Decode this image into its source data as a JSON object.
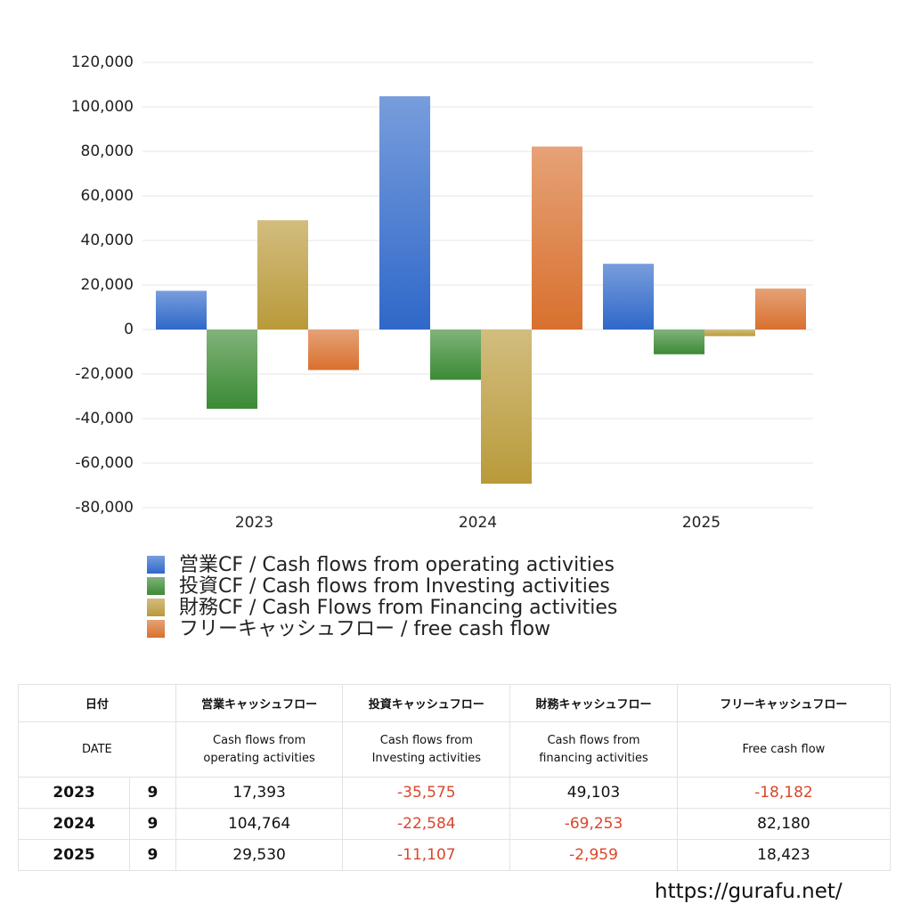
{
  "chart_data": {
    "type": "bar",
    "categories": [
      "2023",
      "2024",
      "2025"
    ],
    "series": [
      {
        "name": "営業CF / Cash flows from operating activities",
        "color": "#2f68c9",
        "values": [
          17393,
          104764,
          29530
        ]
      },
      {
        "name": "投資CF / Cash flows from Investing activities",
        "color": "#3b8a34",
        "values": [
          -35575,
          -22584,
          -11107
        ]
      },
      {
        "name": "財務CF / Cash Flows from Financing activities",
        "color": "#b99a3a",
        "values": [
          49103,
          -69253,
          -2959
        ]
      },
      {
        "name": "フリーキャッシュフロー / free cash flow",
        "color": "#d8702e",
        "values": [
          -18182,
          82180,
          18423
        ]
      }
    ],
    "ylim": [
      -80000,
      120000
    ],
    "yticks": [
      {
        "value": -80000,
        "label": "-80,000"
      },
      {
        "value": -60000,
        "label": "-60,000"
      },
      {
        "value": -40000,
        "label": "-40,000"
      },
      {
        "value": -20000,
        "label": "-20,000"
      },
      0,
      {
        "value": 20000,
        "label": "20,000"
      },
      {
        "value": 40000,
        "label": "40,000"
      },
      {
        "value": 60000,
        "label": "60,000"
      },
      {
        "value": 80000,
        "label": "80,000"
      },
      {
        "value": 100000,
        "label": "100,000"
      },
      {
        "value": 120000,
        "label": "120,000"
      }
    ],
    "grid": true
  },
  "table": {
    "header": [
      "日付",
      "営業キャッシュフロー",
      "投資キャッシュフロー",
      "財務キャッシュフロー",
      "フリーキャッシュフロー"
    ],
    "subheader": [
      "DATE",
      "Cash flows from\noperating activities",
      "Cash flows from\nInvesting activities",
      "Cash flows from\nfinancing activities",
      "Free cash flow"
    ],
    "rows": [
      [
        "2023",
        "9",
        "17,393",
        "-35,575",
        "49,103",
        "-18,182"
      ],
      [
        "2024",
        "9",
        "104,764",
        "-22,584",
        "-69,253",
        "82,180"
      ],
      [
        "2025",
        "9",
        "29,530",
        "-11,107",
        "-2,959",
        "18,423"
      ]
    ]
  },
  "footer": "https://gurafu.net/"
}
